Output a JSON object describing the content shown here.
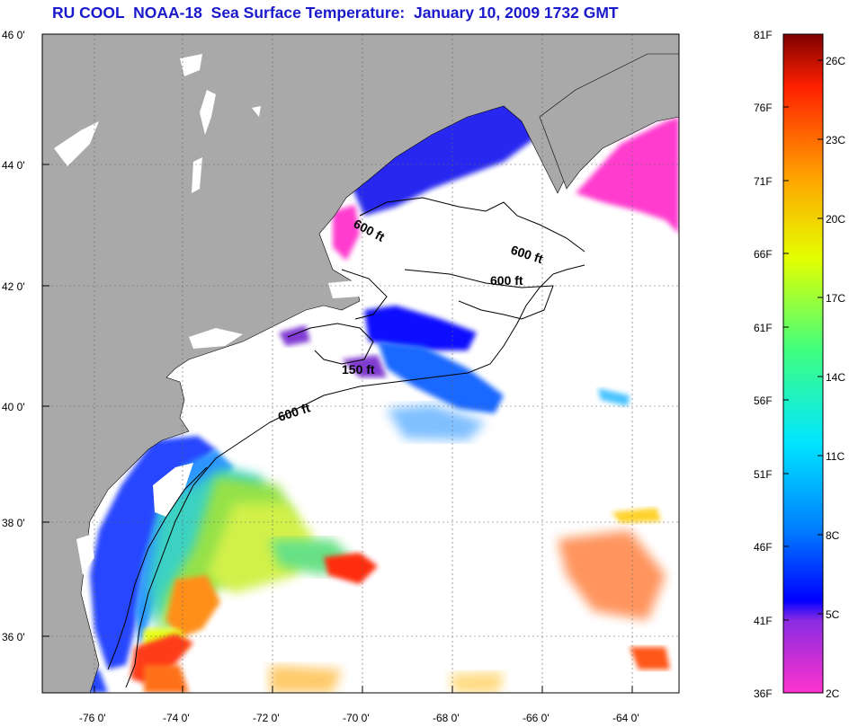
{
  "title": "RU COOL  NOAA-18  Sea Surface Temperature:  January 10, 2009 1732 GMT",
  "map": {
    "lat_ticks": [
      "46 0'",
      "44 0'",
      "42 0'",
      "40 0'",
      "38 0'",
      "36 0'"
    ],
    "lon_ticks": [
      "-76 0'",
      "-74 0'",
      "-72 0'",
      "-70 0'",
      "-68 0'",
      "-66 0'",
      "-64 0'"
    ],
    "contour_labels": [
      "600 ft",
      "600 ft",
      "600 ft",
      "150 ft",
      "600 ft"
    ],
    "colors": {
      "land": "#a9a9a9",
      "ocean_no_data": "#ffffff",
      "grid": "#666666"
    }
  },
  "colorbar": {
    "fahrenheit_labels": [
      "81F",
      "76F",
      "71F",
      "66F",
      "61F",
      "56F",
      "51F",
      "46F",
      "41F",
      "36F"
    ],
    "celsius_labels": [
      "26C",
      "23C",
      "20C",
      "17C",
      "14C",
      "11C",
      "8C",
      "5C",
      "2C"
    ],
    "range_f": [
      36,
      81
    ],
    "gradient": [
      "#ff33cc",
      "#8a2be2",
      "#0000ff",
      "#0080ff",
      "#00e5ff",
      "#40ff80",
      "#e5ff00",
      "#ffa500",
      "#ff2000",
      "#800000"
    ]
  }
}
